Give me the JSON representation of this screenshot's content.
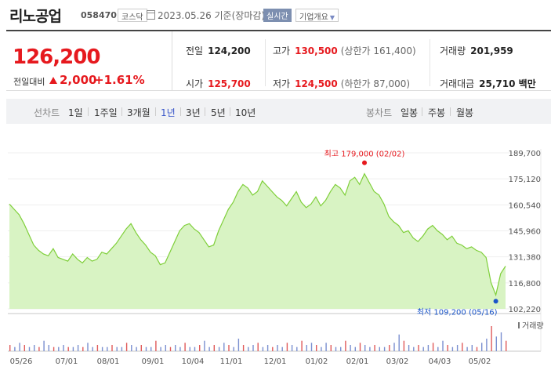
{
  "header": {
    "name": "리노공업",
    "code": "058470",
    "market": "코스닥",
    "date_text": "2023.05.26  기준(장마감)",
    "realtime": "실시간",
    "corp_info": "기업개요"
  },
  "quote": {
    "price": "126,200",
    "change_label": "전일대비",
    "change": "2,000",
    "change_pct": "+1.61%",
    "prev_close_label": "전일",
    "prev_close": "124,200",
    "high_label": "고가",
    "high": "130,500",
    "upper_limit": "(상한가 161,400)",
    "volume_label": "거래량",
    "volume": "201,959",
    "open_label": "시가",
    "open": "125,700",
    "low_label": "저가",
    "low": "124,500",
    "lower_limit": "(하한가 87,000)",
    "amount_label": "거래대금",
    "amount": "25,710 백만"
  },
  "period_bar": {
    "label": "선차트",
    "periods": [
      "1일",
      "1주일",
      "3개월",
      "1년",
      "3년",
      "5년",
      "10년"
    ],
    "selected": "1년",
    "candle_label": "봉차트",
    "candles": [
      "일봉",
      "주봉",
      "월봉"
    ]
  },
  "colors": {
    "up": "#e6191e",
    "down": "#1a55c9",
    "line": "#7fcf3a",
    "fill": "#d8f3c3"
  },
  "chart_data": {
    "type": "area",
    "yticks": [
      "189,700",
      "175,120",
      "160,540",
      "145,960",
      "131,380",
      "116,800",
      "102,220"
    ],
    "ylim": [
      102220,
      189700
    ],
    "xticks": [
      "05/26",
      "07/01",
      "08/01",
      "09/01",
      "10/04",
      "11/01",
      "12/01",
      "01/02",
      "02/01",
      "03/02",
      "04/03",
      "05/02"
    ],
    "high_annotation": "최고 179,000 (02/02)",
    "low_annotation": "최저 109,200 (05/16)",
    "volume_legend": "거래량",
    "prices": [
      161000,
      158000,
      155000,
      150000,
      144000,
      138000,
      135000,
      133000,
      132000,
      136000,
      131000,
      130000,
      129000,
      133000,
      130000,
      128000,
      131000,
      129000,
      130000,
      134000,
      133000,
      136000,
      139000,
      143000,
      147000,
      150000,
      145000,
      141000,
      138000,
      134000,
      132000,
      127000,
      128000,
      134000,
      140000,
      146000,
      149000,
      150000,
      147000,
      145000,
      141000,
      137000,
      138000,
      146000,
      152000,
      158000,
      162000,
      168000,
      172000,
      170000,
      166000,
      168000,
      174000,
      171000,
      168000,
      165000,
      163000,
      160000,
      164000,
      168000,
      162000,
      159000,
      161000,
      165000,
      160000,
      163000,
      168000,
      172000,
      170000,
      166000,
      174000,
      176000,
      172000,
      178000,
      173000,
      168000,
      166000,
      161000,
      154000,
      151000,
      149000,
      145000,
      146000,
      142000,
      140000,
      143000,
      147000,
      149000,
      146000,
      144000,
      141000,
      143000,
      139000,
      138000,
      136000,
      137000,
      135000,
      134000,
      131000,
      117000,
      110000,
      122000,
      126200
    ],
    "volumes": [
      3,
      2,
      4,
      3,
      2,
      3,
      2,
      5,
      3,
      2,
      2,
      3,
      2,
      2,
      3,
      2,
      4,
      2,
      3,
      2,
      2,
      3,
      2,
      2,
      4,
      3,
      2,
      3,
      2,
      2,
      5,
      2,
      3,
      2,
      3,
      2,
      4,
      2,
      2,
      3,
      5,
      2,
      3,
      2,
      4,
      3,
      2,
      6,
      3,
      2,
      3,
      4,
      2,
      3,
      2,
      3,
      2,
      4,
      3,
      2,
      5,
      3,
      4,
      3,
      2,
      4,
      3,
      2,
      2,
      5,
      3,
      2,
      4,
      3,
      2,
      3,
      2,
      2,
      3,
      4,
      8,
      5,
      3,
      2,
      3,
      2,
      3,
      4,
      2,
      5,
      3,
      2,
      3,
      4,
      2,
      3,
      2,
      4,
      6,
      12,
      7,
      9,
      5
    ]
  }
}
